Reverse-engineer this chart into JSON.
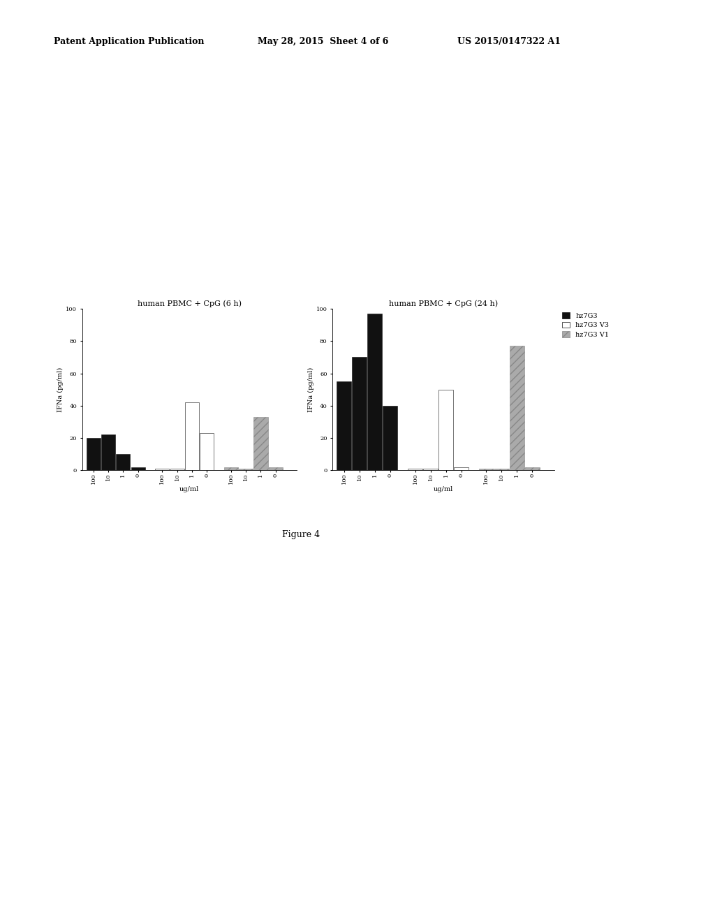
{
  "title_left": "human PBMC + CpG (6 h)",
  "title_right": "human PBMC + CpG (24 h)",
  "ylabel": "IFNa (pg/ml)",
  "xlabel": "ug/ml",
  "ylim": [
    0,
    100
  ],
  "yticks": [
    0,
    20,
    40,
    60,
    80,
    100
  ],
  "xtick_labels": [
    "100",
    "10",
    "1",
    "0"
  ],
  "legend_labels": [
    "hz7G3",
    "hz7G3 V3",
    "hz7G3 V1"
  ],
  "bar_colors": [
    "#111111",
    "#ffffff",
    "#aaaaaa"
  ],
  "bar_edgecolors": [
    "#111111",
    "#111111",
    "#888888"
  ],
  "hatch_patterns": [
    null,
    null,
    "///"
  ],
  "left_data": {
    "hz7G3": [
      20,
      22,
      10,
      2
    ],
    "hz7G3_V3": [
      1,
      1,
      42,
      23
    ],
    "hz7G3_V1": [
      2,
      1,
      33,
      2
    ]
  },
  "right_data": {
    "hz7G3": [
      55,
      70,
      97,
      40
    ],
    "hz7G3_V3": [
      1,
      1,
      50,
      2
    ],
    "hz7G3_V1": [
      1,
      1,
      77,
      2
    ]
  },
  "header_line1": "Patent Application Publication",
  "header_line2": "May 28, 2015  Sheet 4 of 6",
  "header_line3": "US 2015/0147322 A1",
  "figure_label": "Figure 4",
  "background_color": "#ffffff",
  "font_size_title": 8,
  "font_size_axis": 7,
  "font_size_tick": 6,
  "font_size_legend": 7,
  "font_size_header": 9
}
